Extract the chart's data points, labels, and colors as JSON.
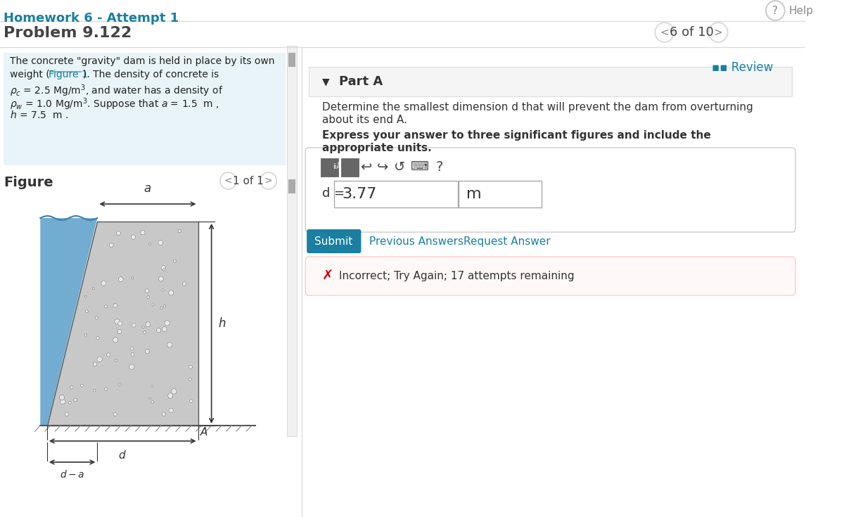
{
  "title": "Homework 6 - Attempt 1",
  "problem_number": "Problem 9.122",
  "title_color": "#1a7fa0",
  "problem_color": "#444444",
  "bg_color": "#ffffff",
  "problem_box_color": "#e8f4f8",
  "problem_text": "The concrete \"gravity\" dam is held in place by its own\nweight (Figure 1). The density of concrete is\nρₜ = 2.5 Mg/m³, and water has a density of\nρᵤ = 1.0 Mg/m³. Suppose that a = 1.5  m ,\nh = 7.5  m .",
  "figure_label": "Figure",
  "figure_nav": "1 of 1",
  "part_a_label": "Part A",
  "navigation": "6 of 10",
  "question_text": "Determine the smallest dimension d that will prevent the dam from overturning\nabout its end A.",
  "express_text": "Express your answer to three significant figures and include the\nappropriate units.",
  "answer_label": "d =",
  "answer_value": "3.77",
  "answer_unit": "m",
  "submit_btn_color": "#1a7fa0",
  "submit_text": "Submit",
  "prev_answers_text": "Previous Answers",
  "request_answer_text": "Request Answer",
  "incorrect_text": "Incorrect; Try Again; 17 attempts remaining",
  "incorrect_color": "#cc0000",
  "review_text": "Review",
  "review_color": "#1a7fa0",
  "help_text": "Help",
  "water_color": "#5b9ec9",
  "concrete_color": "#c8c8c8",
  "concrete_dot_color": "#888888",
  "water_wave_color": "#5b9ec9",
  "line_color": "#333333"
}
